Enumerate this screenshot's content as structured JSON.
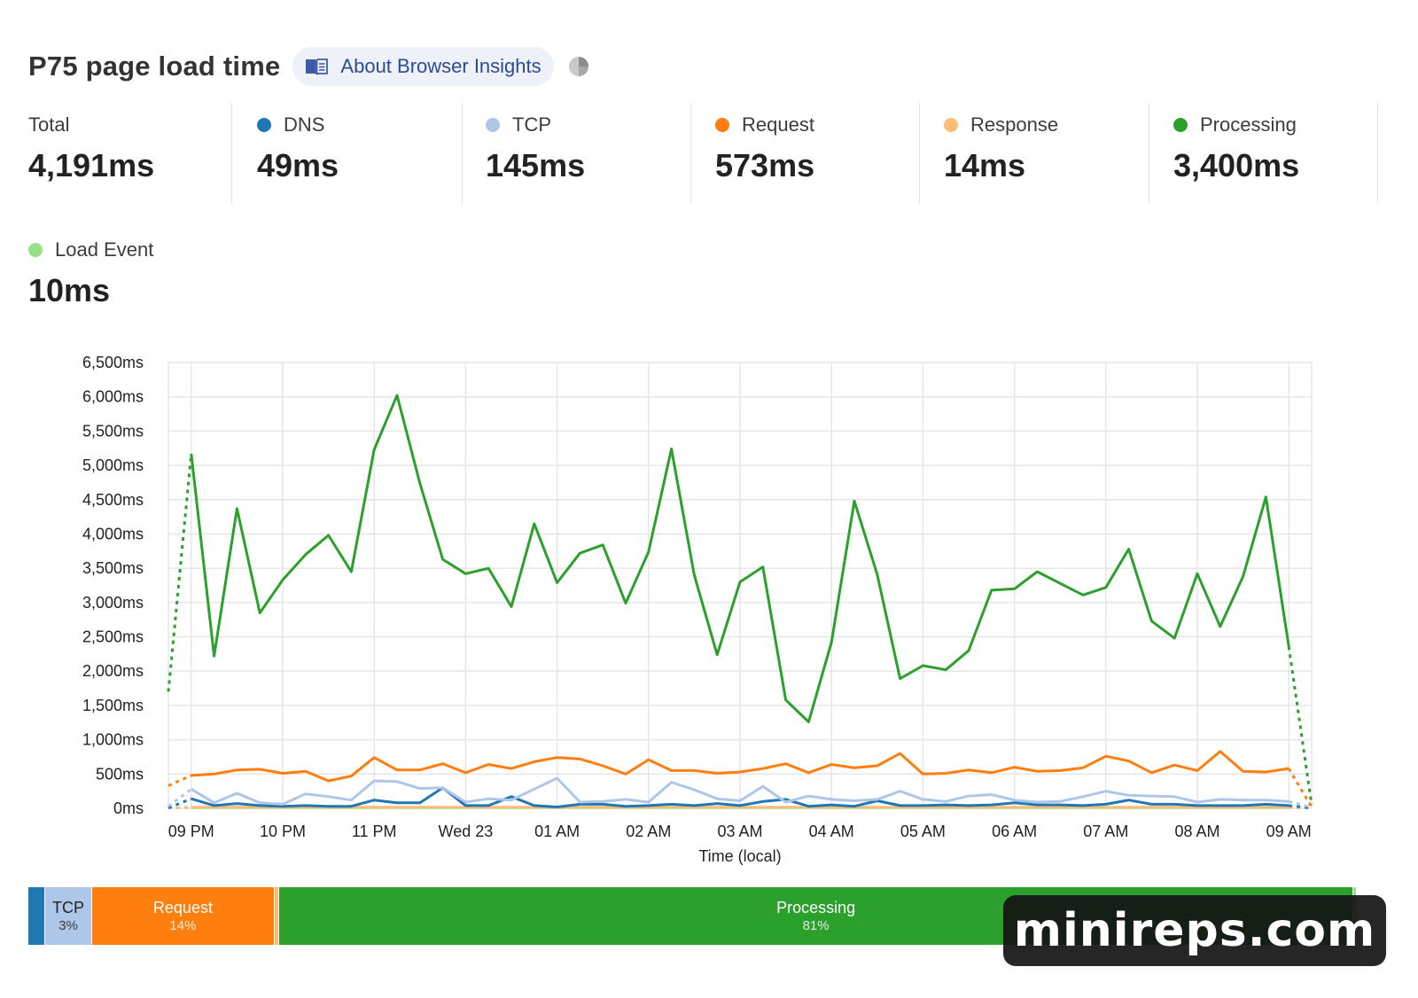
{
  "header": {
    "title": "P75 page load time",
    "about_label": "About Browser Insights"
  },
  "colors": {
    "dns": "#1f77b4",
    "tcp": "#aec7e8",
    "request": "#ff7f0e",
    "response": "#ffbb78",
    "processing": "#2ca02c",
    "load_event": "#98df8a",
    "total": "#222222"
  },
  "metrics": [
    {
      "label": "Total",
      "value": "4,191ms",
      "color": ""
    },
    {
      "label": "DNS",
      "value": "49ms",
      "color": "#1f77b4"
    },
    {
      "label": "TCP",
      "value": "145ms",
      "color": "#aec7e8"
    },
    {
      "label": "Request",
      "value": "573ms",
      "color": "#ff7f0e"
    },
    {
      "label": "Response",
      "value": "14ms",
      "color": "#ffbb78"
    },
    {
      "label": "Processing",
      "value": "3,400ms",
      "color": "#2ca02c"
    },
    {
      "label": "Load Event",
      "value": "10ms",
      "color": "#98df8a"
    }
  ],
  "chart_data": {
    "type": "line",
    "xlabel": "Time (local)",
    "ylabel": "",
    "ylim": [
      0,
      6500
    ],
    "y_ticks": [
      0,
      500,
      1000,
      1500,
      2000,
      2500,
      3000,
      3500,
      4000,
      4500,
      5000,
      5500,
      6000,
      6500
    ],
    "y_tick_labels": [
      "0ms",
      "500ms",
      "1,000ms",
      "1,500ms",
      "2,000ms",
      "2,500ms",
      "3,000ms",
      "3,500ms",
      "4,000ms",
      "4,500ms",
      "5,000ms",
      "5,500ms",
      "6,000ms",
      "6,500ms"
    ],
    "x_tick_labels": [
      "09 PM",
      "10 PM",
      "11 PM",
      "Wed 23",
      "01 AM",
      "02 AM",
      "03 AM",
      "04 AM",
      "05 AM",
      "06 AM",
      "07 AM",
      "08 AM",
      "09 AM"
    ],
    "x_hours_from_9pm": [
      -0.25,
      0,
      0.25,
      0.5,
      0.75,
      1,
      1.25,
      1.5,
      1.75,
      2,
      2.25,
      2.5,
      2.75,
      3,
      3.25,
      3.5,
      3.75,
      4,
      4.25,
      4.5,
      4.75,
      5,
      5.25,
      5.5,
      5.75,
      6,
      6.25,
      6.5,
      6.75,
      7,
      7.25,
      7.5,
      7.75,
      8,
      8.25,
      8.5,
      8.75,
      9,
      9.25,
      9.5,
      9.75,
      10,
      10.25,
      10.5,
      10.75,
      11,
      11.25,
      11.5,
      11.75,
      12,
      12.25
    ],
    "dashed_edges": true,
    "grid": true,
    "legend": "none",
    "series": [
      {
        "name": "Processing",
        "color": "#2ca02c",
        "values": [
          1700,
          5170,
          2220,
          4370,
          2850,
          3330,
          3700,
          3980,
          3450,
          5230,
          6020,
          4740,
          3630,
          3420,
          3500,
          2940,
          4150,
          3290,
          3720,
          3840,
          2990,
          3740,
          5240,
          3400,
          2240,
          3300,
          3520,
          1580,
          1260,
          2420,
          4480,
          3410,
          1890,
          2080,
          2020,
          2300,
          3180,
          3200,
          3450,
          3280,
          3110,
          3220,
          3780,
          2730,
          2480,
          3420,
          2650,
          3380,
          4540,
          2360,
          50
        ]
      },
      {
        "name": "Request",
        "color": "#ff7f0e",
        "values": [
          330,
          480,
          500,
          560,
          570,
          510,
          540,
          400,
          470,
          740,
          560,
          560,
          650,
          520,
          640,
          580,
          680,
          740,
          720,
          620,
          500,
          710,
          550,
          550,
          510,
          530,
          580,
          650,
          520,
          640,
          590,
          620,
          800,
          500,
          510,
          560,
          520,
          600,
          540,
          550,
          590,
          760,
          690,
          520,
          630,
          550,
          830,
          540,
          530,
          580,
          20
        ]
      },
      {
        "name": "TCP",
        "color": "#aec7e8",
        "values": [
          30,
          280,
          80,
          220,
          80,
          60,
          210,
          170,
          120,
          400,
          390,
          290,
          300,
          90,
          140,
          120,
          280,
          440,
          90,
          100,
          130,
          90,
          380,
          270,
          140,
          110,
          320,
          90,
          180,
          130,
          110,
          130,
          250,
          130,
          100,
          180,
          200,
          120,
          90,
          100,
          170,
          250,
          190,
          180,
          170,
          90,
          130,
          120,
          120,
          100,
          15
        ]
      },
      {
        "name": "DNS",
        "color": "#1f77b4",
        "values": [
          5,
          140,
          40,
          70,
          40,
          30,
          40,
          30,
          30,
          120,
          80,
          80,
          300,
          40,
          40,
          170,
          40,
          20,
          60,
          60,
          30,
          40,
          60,
          40,
          70,
          40,
          100,
          130,
          30,
          50,
          30,
          110,
          40,
          40,
          50,
          40,
          50,
          80,
          50,
          50,
          40,
          60,
          120,
          60,
          60,
          40,
          40,
          40,
          60,
          40,
          5
        ]
      },
      {
        "name": "Response",
        "color": "#ffbb78",
        "values": [
          5,
          15,
          15,
          15,
          15,
          15,
          15,
          15,
          15,
          15,
          15,
          15,
          15,
          15,
          15,
          15,
          15,
          15,
          15,
          15,
          15,
          15,
          15,
          15,
          15,
          15,
          15,
          15,
          15,
          15,
          15,
          15,
          15,
          15,
          15,
          15,
          15,
          15,
          15,
          15,
          15,
          15,
          15,
          15,
          15,
          15,
          15,
          15,
          15,
          15,
          5
        ]
      },
      {
        "name": "Load Event",
        "color": "#98df8a",
        "values": [
          5,
          10,
          10,
          10,
          10,
          10,
          10,
          10,
          10,
          10,
          10,
          10,
          10,
          10,
          10,
          10,
          10,
          10,
          10,
          10,
          10,
          10,
          10,
          10,
          10,
          10,
          10,
          10,
          10,
          10,
          10,
          10,
          10,
          10,
          10,
          10,
          10,
          10,
          10,
          10,
          10,
          10,
          10,
          10,
          10,
          10,
          10,
          10,
          10,
          10,
          5
        ]
      }
    ]
  },
  "breakdown": [
    {
      "name": "DNS",
      "fraction": 0.012,
      "color": "#1f77b4",
      "label": "",
      "pct": "",
      "text_color": "#ffffff"
    },
    {
      "name": "TCP",
      "fraction": 0.035,
      "color": "#aec7e8",
      "label": "TCP",
      "pct": "3%",
      "text_color": "#222222"
    },
    {
      "name": "Request",
      "fraction": 0.137,
      "color": "#ff7f0e",
      "label": "Request",
      "pct": "14%",
      "text_color": "#ffffff"
    },
    {
      "name": "Response",
      "fraction": 0.003,
      "color": "#ffbb78",
      "label": "",
      "pct": "",
      "text_color": "#222222"
    },
    {
      "name": "Processing",
      "fraction": 0.811,
      "color": "#2ca02c",
      "label": "Processing",
      "pct": "81%",
      "text_color": "#ffffff"
    },
    {
      "name": "Load Event",
      "fraction": 0.002,
      "color": "#98df8a",
      "label": "",
      "pct": "",
      "text_color": "#222222"
    }
  ],
  "watermark": "minireps.com"
}
